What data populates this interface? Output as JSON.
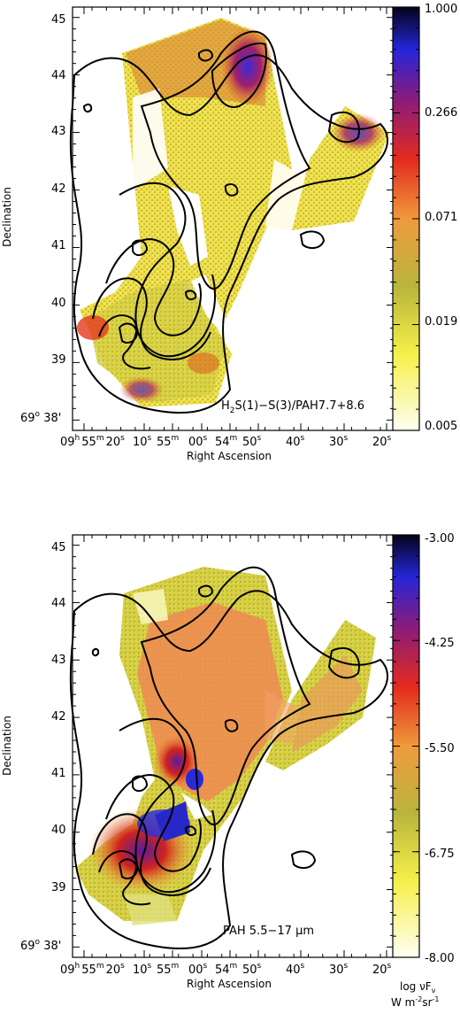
{
  "panels": [
    {
      "id": "top",
      "xlabel": "Right Ascension",
      "ylabel": "Declination",
      "label_parts": [
        "H",
        "2",
        "S(1)−S(3)/PAH7.7+8.6"
      ],
      "yticks": [
        "45",
        "44",
        "43",
        "42",
        "41",
        "40",
        "39"
      ],
      "ybase": [
        "69",
        "o",
        " 38'"
      ],
      "colorbar_ticks": [
        "1.000",
        "0.266",
        "0.071",
        "0.019",
        "0.005"
      ]
    },
    {
      "id": "bottom",
      "xlabel": "Right Ascension",
      "ylabel": "Declination",
      "label_parts": [
        "PAH 5.5−17 ",
        "μ",
        "m"
      ],
      "yticks": [
        "45",
        "44",
        "43",
        "42",
        "41",
        "40",
        "39"
      ],
      "ybase": [
        "69",
        "o",
        " 38'"
      ],
      "colorbar_ticks": [
        "-3.00",
        "-4.25",
        "-5.50",
        "-6.75",
        "-8.00"
      ],
      "colorbar_label": [
        "log νF",
        "ν",
        "W m",
        "-2",
        "sr",
        "-1"
      ]
    }
  ],
  "xtick_labels": [
    [
      "09",
      "h",
      "55",
      "m",
      "20",
      "s"
    ],
    [
      "10",
      "s"
    ],
    [
      "55",
      "m"
    ],
    [
      "00",
      "s"
    ],
    [
      "54",
      "m"
    ],
    [
      "50",
      "s"
    ],
    [
      "40",
      "s"
    ],
    [
      "30",
      "s"
    ],
    [
      "20",
      "s"
    ]
  ],
  "chart_data": [
    {
      "type": "heatmap",
      "xlabel": "Right Ascension",
      "ylabel": "Declination",
      "annotation": "H2S(1)-S(3)/PAH7.7+8.6",
      "colorbar": {
        "scale": "log",
        "ticks": [
          1.0,
          0.266,
          0.071,
          0.019,
          0.005
        ],
        "range": [
          0.005,
          1.0
        ]
      },
      "x_ticks": [
        "09h55m20s",
        "10s",
        "55m00s",
        "54m50s",
        "40s",
        "30s",
        "20s"
      ],
      "y_ticks": [
        "69°38'",
        "39",
        "40",
        "41",
        "42",
        "43",
        "44",
        "45"
      ],
      "overlay": "black contours"
    },
    {
      "type": "heatmap",
      "xlabel": "Right Ascension",
      "ylabel": "Declination",
      "annotation": "PAH 5.5-17 μm",
      "colorbar": {
        "scale": "linear",
        "label": "log νFν  W m^-2 sr^-1",
        "ticks": [
          -3.0,
          -4.25,
          -5.5,
          -6.75,
          -8.0
        ],
        "range": [
          -8.0,
          -3.0
        ]
      },
      "x_ticks": [
        "09h55m20s",
        "10s",
        "55m00s",
        "54m50s",
        "40s",
        "30s",
        "20s"
      ],
      "y_ticks": [
        "69°38'",
        "39",
        "40",
        "41",
        "42",
        "43",
        "44",
        "45"
      ],
      "overlay": "black contours"
    }
  ],
  "colors": {
    "low": "#fffef0",
    "yellow": "#f4ef3c",
    "olive": "#b9b43a",
    "orange": "#ef9a3c",
    "red": "#e42a1e",
    "purple": "#7a1f8f",
    "blue": "#2a2ad6",
    "high": "#05051f"
  }
}
